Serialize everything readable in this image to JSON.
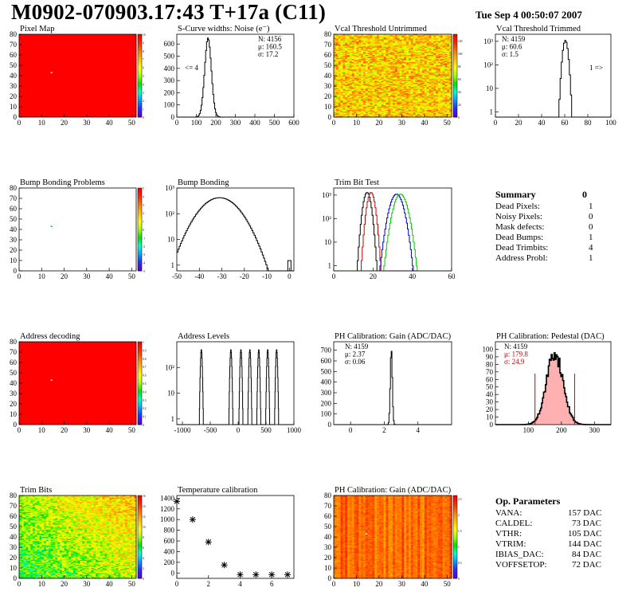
{
  "header": {
    "title": "M0902-070903.17:43 T+17a (C11)",
    "timestamp": "Tue Sep  4 00:50:07 2007"
  },
  "colors": {
    "map_red": "#ff0000",
    "heatmap_palette": [
      "#5a00d8",
      "#2d2dff",
      "#00a0ff",
      "#00ffd0",
      "#00e000",
      "#a0ff00",
      "#ffff00",
      "#ffc000",
      "#ff8000",
      "#ff3000",
      "#ff0000"
    ],
    "trim_red": "#cc0000",
    "trim_blue": "#0000cc",
    "trim_green": "#00cc00"
  },
  "summary": {
    "title": "Summary",
    "total": "0",
    "rows": [
      {
        "label": "Dead Pixels:",
        "value": "1"
      },
      {
        "label": "Noisy Pixels:",
        "value": "0"
      },
      {
        "label": "Mask defects:",
        "value": "0"
      },
      {
        "label": "Dead Bumps:",
        "value": "1"
      },
      {
        "label": "Dead Trimbits:",
        "value": "4"
      },
      {
        "label": "Address Probl:",
        "value": "1"
      }
    ]
  },
  "op_params": {
    "title": "Op. Parameters",
    "rows": [
      {
        "label": "VANA:",
        "value": "157 DAC"
      },
      {
        "label": "CALDEL:",
        "value": "73 DAC"
      },
      {
        "label": "VTHR:",
        "value": "105 DAC"
      },
      {
        "label": "VTRIM:",
        "value": "144 DAC"
      },
      {
        "label": "IBIAS_DAC:",
        "value": "84 DAC"
      },
      {
        "label": "VOFFSETOP:",
        "value": "72 DAC"
      }
    ]
  },
  "chart_data": [
    {
      "id": "pixel-map",
      "type": "heatmap",
      "title": "Pixel Map",
      "xlim": [
        0,
        52
      ],
      "ylim": [
        0,
        80
      ],
      "xticks": [
        0,
        10,
        20,
        30,
        40,
        50
      ],
      "yticks": [
        0,
        10,
        20,
        30,
        40,
        50,
        60,
        70,
        80
      ],
      "zlim": [
        0,
        10
      ],
      "zticks": [
        0,
        1,
        2,
        3,
        4,
        5,
        6,
        7,
        8,
        9,
        10
      ],
      "fill": "uniform-red",
      "marked_pixels": [
        {
          "x": 14,
          "y": 43
        }
      ]
    },
    {
      "id": "noise",
      "type": "histogram",
      "title": "S-Curve widths: Noise (e⁻)",
      "xlim": [
        0,
        600
      ],
      "ylim": [
        0,
        680
      ],
      "xticks": [
        0,
        100,
        200,
        300,
        400,
        500,
        600
      ],
      "yticks": [
        0,
        100,
        200,
        300,
        400,
        500,
        600
      ],
      "stats": {
        "N": "N: 4156",
        "mu": "μ: 160.5",
        "sigma": "σ: 17.2"
      },
      "underflow_label": "<= 4",
      "peak_center": 160,
      "peak_sigma": 17,
      "peak_height": 650
    },
    {
      "id": "vcal-untrimmed",
      "type": "heatmap",
      "title": "Vcal Threshold Untrimmed",
      "xlim": [
        0,
        52
      ],
      "ylim": [
        0,
        80
      ],
      "xticks": [
        0,
        10,
        20,
        30,
        40,
        50
      ],
      "yticks": [
        0,
        10,
        20,
        30,
        40,
        50,
        60,
        70,
        80
      ],
      "zlim": [
        0,
        130
      ],
      "zticks": [
        0,
        20,
        40,
        60,
        80,
        100,
        120
      ],
      "fill": "noisy-orange",
      "marked_pixels": [
        {
          "x": 14,
          "y": 43
        }
      ]
    },
    {
      "id": "vcal-trimmed",
      "type": "histogram",
      "title": "Vcal Threshold Trimmed",
      "log": true,
      "xlim": [
        0,
        100
      ],
      "ylim": [
        0.6,
        2000
      ],
      "xticks": [
        0,
        20,
        40,
        60,
        80,
        100
      ],
      "ytick_labels": [
        "1",
        "10",
        "10²",
        "10³"
      ],
      "stats": {
        "N": "N: 4159",
        "mu": "μ: 60.6",
        "sigma": "σ:  1.5"
      },
      "overflow_label": "1 =>",
      "peak_center": 60.6,
      "peak_sigma": 1.5,
      "peak_height": 1100
    },
    {
      "id": "bump-problems",
      "type": "heatmap",
      "title": "Bump Bonding Problems",
      "xlim": [
        0,
        52
      ],
      "ylim": [
        0,
        80
      ],
      "xticks": [
        0,
        10,
        20,
        30,
        40,
        50
      ],
      "yticks": [
        0,
        10,
        20,
        30,
        40,
        50,
        60,
        70,
        80
      ],
      "zlim": [
        -5,
        5
      ],
      "zticks": [
        -5,
        -4,
        -3,
        -2,
        -1,
        0,
        1,
        2,
        3,
        4,
        5
      ],
      "fill": "empty",
      "marked_pixels": [
        {
          "x": 14,
          "y": 43
        }
      ]
    },
    {
      "id": "bump-bonding",
      "type": "histogram",
      "title": "Bump Bonding",
      "log": true,
      "xlim": [
        -50,
        2
      ],
      "ylim": [
        0.6,
        1000
      ],
      "xticks": [
        -50,
        -40,
        -30,
        -20,
        -10,
        0
      ],
      "ytick_labels": [
        "1",
        "10",
        "10²",
        "10³"
      ],
      "peak_center": -31,
      "peak_sigma": 6,
      "peak_height": 420,
      "outlier": {
        "x": 0,
        "count": 1
      }
    },
    {
      "id": "trim-bit-test",
      "type": "histogram",
      "title": "Trim Bit Test",
      "log": true,
      "xlim": [
        0,
        60
      ],
      "ylim": [
        0.6,
        2000
      ],
      "xticks": [
        0,
        20,
        40,
        60
      ],
      "ytick_labels": [
        "1",
        "10",
        "10²",
        "10³"
      ],
      "series": [
        {
          "color": "#000000",
          "center": 17,
          "sigma": 1.3,
          "height": 1300
        },
        {
          "color": "#cc0000",
          "center": 19,
          "sigma": 1.3,
          "height": 1300
        },
        {
          "color": "#0000cc",
          "center": 32,
          "sigma": 2.2,
          "height": 1100
        },
        {
          "color": "#00cc00",
          "center": 34,
          "sigma": 2.2,
          "height": 1100
        }
      ]
    },
    {
      "id": "address-decoding",
      "type": "heatmap",
      "title": "Address decoding",
      "xlim": [
        0,
        52
      ],
      "ylim": [
        0,
        80
      ],
      "xticks": [
        0,
        10,
        20,
        30,
        40,
        50
      ],
      "yticks": [
        0,
        10,
        20,
        30,
        40,
        50,
        60,
        70,
        80
      ],
      "zlim": [
        0,
        1
      ],
      "zticks": [
        0,
        0.1,
        0.2,
        0.3,
        0.4,
        0.5,
        0.6,
        0.7,
        0.8,
        0.9,
        1
      ],
      "fill": "uniform-red",
      "marked_pixels": [
        {
          "x": 14,
          "y": 43
        }
      ]
    },
    {
      "id": "address-levels",
      "type": "histogram",
      "title": "Address Levels",
      "log": true,
      "xlim": [
        -1100,
        1000
      ],
      "ylim": [
        0.6,
        1000
      ],
      "xticks": [
        -1000,
        -500,
        0,
        500,
        1000
      ],
      "ytick_labels": [
        "1",
        "10",
        "10²"
      ],
      "peaks": [
        -660,
        -130,
        50,
        210,
        370,
        530,
        690
      ],
      "peak_height": 500
    },
    {
      "id": "ph-gain",
      "type": "histogram",
      "title": "PH Calibration: Gain (ADC/DAC)",
      "xlim": [
        -1,
        6
      ],
      "ylim": [
        0,
        780
      ],
      "xticks": [
        0,
        2,
        4
      ],
      "yticks": [
        0,
        100,
        200,
        300,
        400,
        500,
        600,
        700
      ],
      "stats": {
        "N": "N: 4159",
        "mu": "μ: 2.37",
        "sigma": "σ: 0.06"
      },
      "peak_center": 2.42,
      "peak_sigma": 0.06,
      "peak_height": 710
    },
    {
      "id": "ph-pedestal",
      "type": "histogram",
      "title": "PH Calibration: Pedestal (DAC)",
      "xlim": [
        0,
        350
      ],
      "ylim": [
        0,
        110
      ],
      "xticks": [
        100,
        200,
        300
      ],
      "yticks": [
        0,
        10,
        20,
        30,
        40,
        50,
        60,
        70,
        80,
        90,
        100
      ],
      "stats": {
        "N": "N: 4159",
        "mu": "μ: 179.8",
        "sigma": "σ: 24.9"
      },
      "peak_center": 180,
      "peak_sigma": 25,
      "peak_height": 95,
      "cut_lines": [
        120,
        240
      ]
    },
    {
      "id": "trim-bits",
      "type": "heatmap",
      "title": "Trim Bits",
      "xlim": [
        0,
        52
      ],
      "ylim": [
        0,
        80
      ],
      "xticks": [
        0,
        10,
        20,
        30,
        40,
        50
      ],
      "yticks": [
        0,
        10,
        20,
        30,
        40,
        50,
        60,
        70,
        80
      ],
      "zlim": [
        0,
        16
      ],
      "zticks": [
        0,
        2,
        4,
        6,
        8,
        10,
        12,
        14,
        16
      ],
      "fill": "trim-gradient"
    },
    {
      "id": "temp-calibration",
      "type": "scatter",
      "title": "Temperature calibration",
      "xlim": [
        0,
        7.4
      ],
      "ylim": [
        -100,
        1450
      ],
      "xticks": [
        0,
        2,
        4,
        6
      ],
      "yticks": [
        0,
        200,
        400,
        600,
        800,
        1000,
        1200,
        1400
      ],
      "x": [
        0,
        1,
        2,
        3,
        4,
        5,
        6,
        7
      ],
      "y": [
        1340,
        1000,
        580,
        150,
        -30,
        -30,
        -30,
        -30
      ]
    },
    {
      "id": "ph-gain-map",
      "type": "heatmap",
      "title": "PH Calibration: Gain (ADC/DAC)",
      "xlim": [
        0,
        52
      ],
      "ylim": [
        0,
        80
      ],
      "xticks": [
        0,
        10,
        20,
        30,
        40,
        50
      ],
      "yticks": [
        0,
        10,
        20,
        30,
        40,
        50,
        60,
        70,
        80
      ],
      "zlim": [
        0,
        2.6
      ],
      "zticks": [
        0,
        0.5,
        1,
        1.5,
        2,
        2.5
      ],
      "fill": "gain-columns",
      "marked_pixels": [
        {
          "x": 14,
          "y": 43
        }
      ]
    }
  ]
}
